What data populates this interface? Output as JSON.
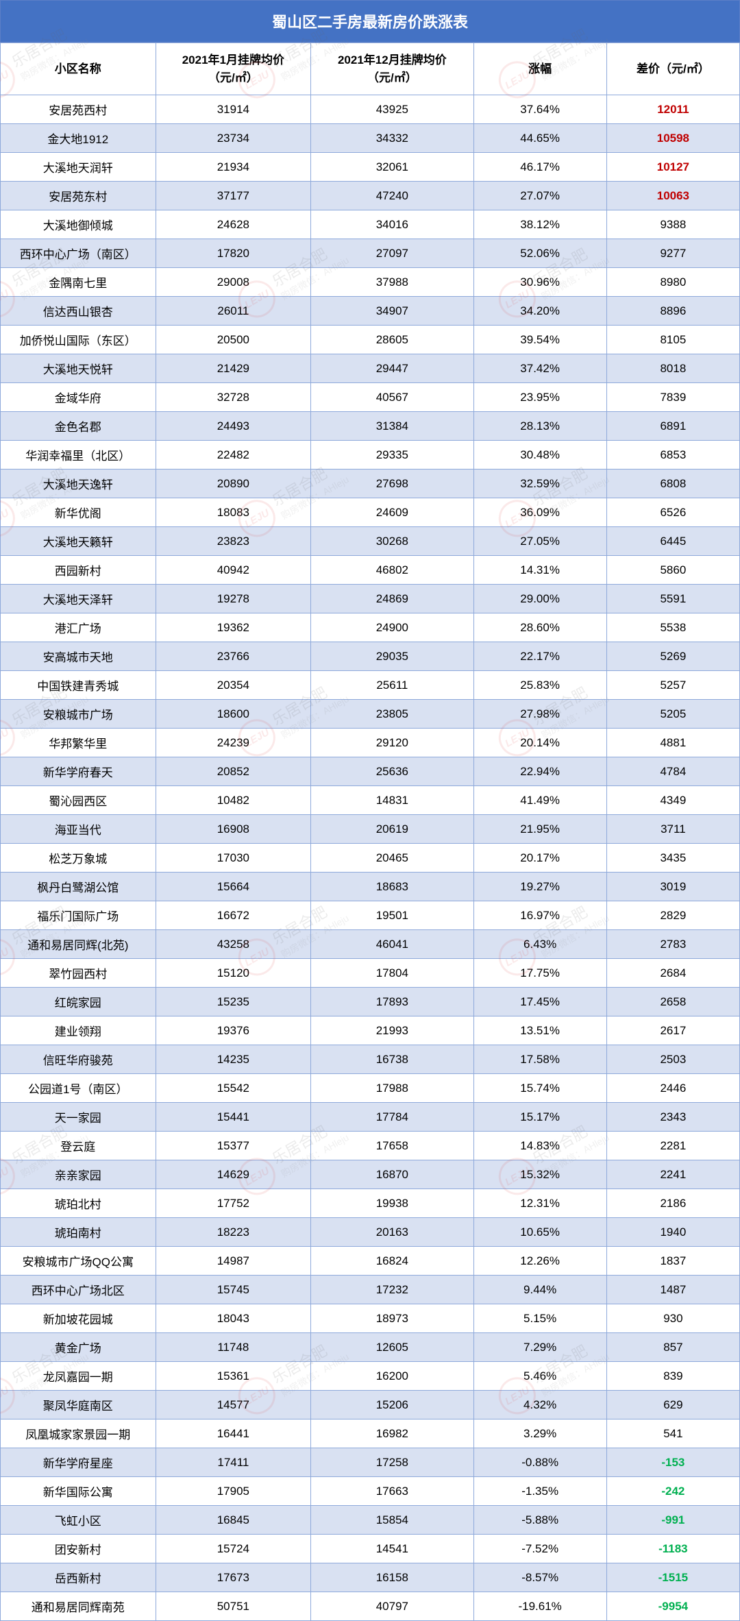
{
  "title": "蜀山区二手房最新房价跌涨表",
  "columns": [
    "小区名称",
    "2021年1月挂牌均价\n（元/㎡）",
    "2021年12月挂牌均价\n（元/㎡）",
    "涨幅",
    "差价（元/㎡）"
  ],
  "watermark": {
    "logo_text": "LEJU",
    "brand": "乐居合肥",
    "sub": "购房微信：AHleju"
  },
  "diff_colors": {
    "red": "#c00000",
    "green": "#00b050",
    "default": "#000000"
  },
  "rows": [
    {
      "name": "安居苑西村",
      "jan": "31914",
      "dec": "43925",
      "pct": "37.64%",
      "diff": "12011",
      "diffStyle": "red"
    },
    {
      "name": "金大地1912",
      "jan": "23734",
      "dec": "34332",
      "pct": "44.65%",
      "diff": "10598",
      "diffStyle": "red"
    },
    {
      "name": "大溪地天润轩",
      "jan": "21934",
      "dec": "32061",
      "pct": "46.17%",
      "diff": "10127",
      "diffStyle": "red"
    },
    {
      "name": "安居苑东村",
      "jan": "37177",
      "dec": "47240",
      "pct": "27.07%",
      "diff": "10063",
      "diffStyle": "red"
    },
    {
      "name": "大溪地御倾城",
      "jan": "24628",
      "dec": "34016",
      "pct": "38.12%",
      "diff": "9388",
      "diffStyle": ""
    },
    {
      "name": "西环中心广场（南区）",
      "jan": "17820",
      "dec": "27097",
      "pct": "52.06%",
      "diff": "9277",
      "diffStyle": ""
    },
    {
      "name": "金隅南七里",
      "jan": "29008",
      "dec": "37988",
      "pct": "30.96%",
      "diff": "8980",
      "diffStyle": ""
    },
    {
      "name": "信达西山银杏",
      "jan": "26011",
      "dec": "34907",
      "pct": "34.20%",
      "diff": "8896",
      "diffStyle": ""
    },
    {
      "name": "加侨悦山国际（东区）",
      "jan": "20500",
      "dec": "28605",
      "pct": "39.54%",
      "diff": "8105",
      "diffStyle": ""
    },
    {
      "name": "大溪地天悦轩",
      "jan": "21429",
      "dec": "29447",
      "pct": "37.42%",
      "diff": "8018",
      "diffStyle": ""
    },
    {
      "name": "金域华府",
      "jan": "32728",
      "dec": "40567",
      "pct": "23.95%",
      "diff": "7839",
      "diffStyle": ""
    },
    {
      "name": "金色名郡",
      "jan": "24493",
      "dec": "31384",
      "pct": "28.13%",
      "diff": "6891",
      "diffStyle": ""
    },
    {
      "name": "华润幸福里（北区）",
      "jan": "22482",
      "dec": "29335",
      "pct": "30.48%",
      "diff": "6853",
      "diffStyle": ""
    },
    {
      "name": "大溪地天逸轩",
      "jan": "20890",
      "dec": "27698",
      "pct": "32.59%",
      "diff": "6808",
      "diffStyle": ""
    },
    {
      "name": "新华优阁",
      "jan": "18083",
      "dec": "24609",
      "pct": "36.09%",
      "diff": "6526",
      "diffStyle": ""
    },
    {
      "name": "大溪地天籁轩",
      "jan": "23823",
      "dec": "30268",
      "pct": "27.05%",
      "diff": "6445",
      "diffStyle": ""
    },
    {
      "name": "西园新村",
      "jan": "40942",
      "dec": "46802",
      "pct": "14.31%",
      "diff": "5860",
      "diffStyle": ""
    },
    {
      "name": "大溪地天泽轩",
      "jan": "19278",
      "dec": "24869",
      "pct": "29.00%",
      "diff": "5591",
      "diffStyle": ""
    },
    {
      "name": "港汇广场",
      "jan": "19362",
      "dec": "24900",
      "pct": "28.60%",
      "diff": "5538",
      "diffStyle": ""
    },
    {
      "name": "安高城市天地",
      "jan": "23766",
      "dec": "29035",
      "pct": "22.17%",
      "diff": "5269",
      "diffStyle": ""
    },
    {
      "name": "中国铁建青秀城",
      "jan": "20354",
      "dec": "25611",
      "pct": "25.83%",
      "diff": "5257",
      "diffStyle": ""
    },
    {
      "name": "安粮城市广场",
      "jan": "18600",
      "dec": "23805",
      "pct": "27.98%",
      "diff": "5205",
      "diffStyle": ""
    },
    {
      "name": "华邦繁华里",
      "jan": "24239",
      "dec": "29120",
      "pct": "20.14%",
      "diff": "4881",
      "diffStyle": ""
    },
    {
      "name": "新华学府春天",
      "jan": "20852",
      "dec": "25636",
      "pct": "22.94%",
      "diff": "4784",
      "diffStyle": ""
    },
    {
      "name": "蜀沁园西区",
      "jan": "10482",
      "dec": "14831",
      "pct": "41.49%",
      "diff": "4349",
      "diffStyle": ""
    },
    {
      "name": "海亚当代",
      "jan": "16908",
      "dec": "20619",
      "pct": "21.95%",
      "diff": "3711",
      "diffStyle": ""
    },
    {
      "name": "松芝万象城",
      "jan": "17030",
      "dec": "20465",
      "pct": "20.17%",
      "diff": "3435",
      "diffStyle": ""
    },
    {
      "name": "枫丹白鹭湖公馆",
      "jan": "15664",
      "dec": "18683",
      "pct": "19.27%",
      "diff": "3019",
      "diffStyle": ""
    },
    {
      "name": "福乐门国际广场",
      "jan": "16672",
      "dec": "19501",
      "pct": "16.97%",
      "diff": "2829",
      "diffStyle": ""
    },
    {
      "name": "通和易居同辉(北苑)",
      "jan": "43258",
      "dec": "46041",
      "pct": "6.43%",
      "diff": "2783",
      "diffStyle": ""
    },
    {
      "name": "翠竹园西村",
      "jan": "15120",
      "dec": "17804",
      "pct": "17.75%",
      "diff": "2684",
      "diffStyle": ""
    },
    {
      "name": "红皖家园",
      "jan": "15235",
      "dec": "17893",
      "pct": "17.45%",
      "diff": "2658",
      "diffStyle": ""
    },
    {
      "name": "建业领翔",
      "jan": "19376",
      "dec": "21993",
      "pct": "13.51%",
      "diff": "2617",
      "diffStyle": ""
    },
    {
      "name": "信旺华府骏苑",
      "jan": "14235",
      "dec": "16738",
      "pct": "17.58%",
      "diff": "2503",
      "diffStyle": ""
    },
    {
      "name": "公园道1号（南区）",
      "jan": "15542",
      "dec": "17988",
      "pct": "15.74%",
      "diff": "2446",
      "diffStyle": ""
    },
    {
      "name": "天一家园",
      "jan": "15441",
      "dec": "17784",
      "pct": "15.17%",
      "diff": "2343",
      "diffStyle": ""
    },
    {
      "name": "登云庭",
      "jan": "15377",
      "dec": "17658",
      "pct": "14.83%",
      "diff": "2281",
      "diffStyle": ""
    },
    {
      "name": "亲亲家园",
      "jan": "14629",
      "dec": "16870",
      "pct": "15.32%",
      "diff": "2241",
      "diffStyle": ""
    },
    {
      "name": "琥珀北村",
      "jan": "17752",
      "dec": "19938",
      "pct": "12.31%",
      "diff": "2186",
      "diffStyle": ""
    },
    {
      "name": "琥珀南村",
      "jan": "18223",
      "dec": "20163",
      "pct": "10.65%",
      "diff": "1940",
      "diffStyle": ""
    },
    {
      "name": "安粮城市广场QQ公寓",
      "jan": "14987",
      "dec": "16824",
      "pct": "12.26%",
      "diff": "1837",
      "diffStyle": ""
    },
    {
      "name": "西环中心广场北区",
      "jan": "15745",
      "dec": "17232",
      "pct": "9.44%",
      "diff": "1487",
      "diffStyle": ""
    },
    {
      "name": "新加坡花园城",
      "jan": "18043",
      "dec": "18973",
      "pct": "5.15%",
      "diff": "930",
      "diffStyle": ""
    },
    {
      "name": "黄金广场",
      "jan": "11748",
      "dec": "12605",
      "pct": "7.29%",
      "diff": "857",
      "diffStyle": ""
    },
    {
      "name": "龙凤嘉园一期",
      "jan": "15361",
      "dec": "16200",
      "pct": "5.46%",
      "diff": "839",
      "diffStyle": ""
    },
    {
      "name": "聚凤华庭南区",
      "jan": "14577",
      "dec": "15206",
      "pct": "4.32%",
      "diff": "629",
      "diffStyle": ""
    },
    {
      "name": "凤凰城家家景园一期",
      "jan": "16441",
      "dec": "16982",
      "pct": "3.29%",
      "diff": "541",
      "diffStyle": ""
    },
    {
      "name": "新华学府星座",
      "jan": "17411",
      "dec": "17258",
      "pct": "-0.88%",
      "diff": "-153",
      "diffStyle": "green"
    },
    {
      "name": "新华国际公寓",
      "jan": "17905",
      "dec": "17663",
      "pct": "-1.35%",
      "diff": "-242",
      "diffStyle": "green"
    },
    {
      "name": "飞虹小区",
      "jan": "16845",
      "dec": "15854",
      "pct": "-5.88%",
      "diff": "-991",
      "diffStyle": "green"
    },
    {
      "name": "团安新村",
      "jan": "15724",
      "dec": "14541",
      "pct": "-7.52%",
      "diff": "-1183",
      "diffStyle": "green"
    },
    {
      "name": "岳西新村",
      "jan": "17673",
      "dec": "16158",
      "pct": "-8.57%",
      "diff": "-1515",
      "diffStyle": "green"
    },
    {
      "name": "通和易居同辉南苑",
      "jan": "50751",
      "dec": "40797",
      "pct": "-19.61%",
      "diff": "-9954",
      "diffStyle": "green"
    }
  ]
}
